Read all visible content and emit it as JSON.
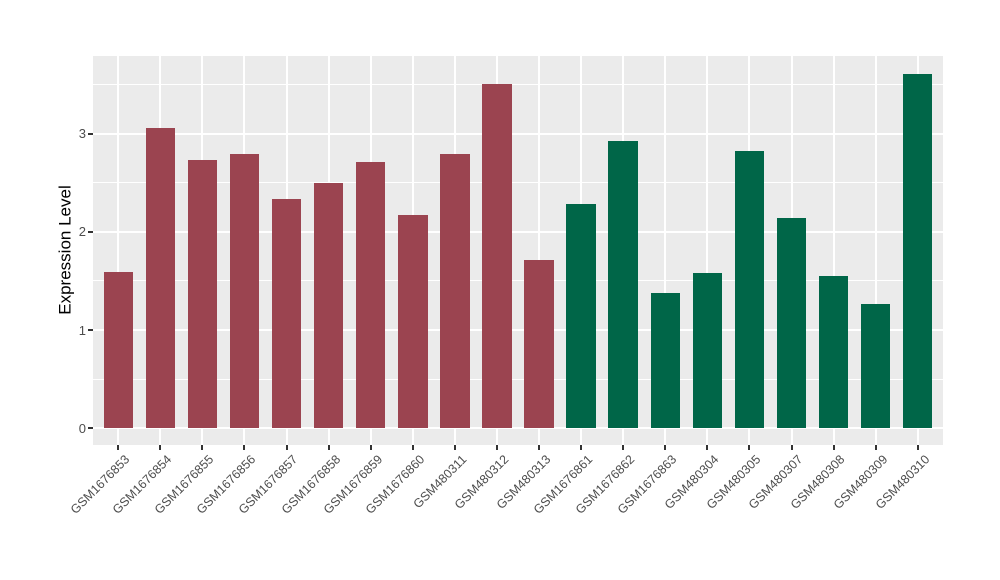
{
  "chart_data": {
    "type": "bar",
    "title": "",
    "ylabel": "Expression Level",
    "xlabel": "",
    "ylim": [
      -0.17,
      3.79
    ],
    "yticks": [
      0,
      1,
      2,
      3
    ],
    "y_minor_gridlines": [
      0.5,
      1.5,
      2.5,
      3.5
    ],
    "grid": "on",
    "legend_position": "none",
    "panel_background": "#EBEBEB",
    "gridline_color": "#FFFFFF",
    "axis_text_color": "#4D4D4D",
    "axis_title_color": "#000000",
    "tick_mark_color": "#333333",
    "categories": [
      "GSM1676853",
      "GSM1676854",
      "GSM1676855",
      "GSM1676856",
      "GSM1676857",
      "GSM1676858",
      "GSM1676859",
      "GSM1676860",
      "GSM480311",
      "GSM480312",
      "GSM480313",
      "GSM1676861",
      "GSM1676862",
      "GSM1676863",
      "GSM480304",
      "GSM480305",
      "GSM480307",
      "GSM480308",
      "GSM480309",
      "GSM480310"
    ],
    "values": [
      1.59,
      3.06,
      2.73,
      2.79,
      2.33,
      2.5,
      2.71,
      2.17,
      2.79,
      3.5,
      1.71,
      2.28,
      2.92,
      1.38,
      1.58,
      2.82,
      2.14,
      1.55,
      1.27,
      3.61
    ],
    "groups": [
      "group1",
      "group1",
      "group1",
      "group1",
      "group1",
      "group1",
      "group1",
      "group1",
      "group1",
      "group1",
      "group1",
      "group2",
      "group2",
      "group2",
      "group2",
      "group2",
      "group2",
      "group2",
      "group2",
      "group2"
    ],
    "group_colors": {
      "group1": "#9B4450",
      "group2": "#006648"
    }
  }
}
